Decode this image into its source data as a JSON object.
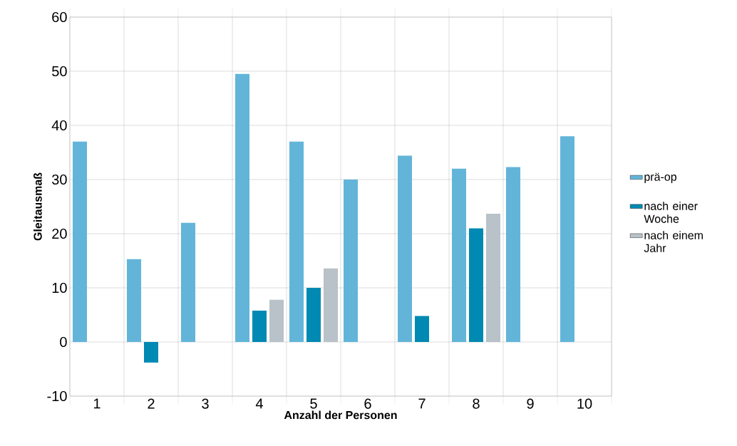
{
  "chart_data": {
    "type": "bar",
    "xlabel": "Anzahl der Personen",
    "ylabel": "Gleitausmaß",
    "categories": [
      "1",
      "2",
      "3",
      "4",
      "5",
      "6",
      "7",
      "8",
      "9",
      "10"
    ],
    "series": [
      {
        "name": "prä-op",
        "color": "#62b5d9",
        "values": [
          37,
          15.3,
          22,
          49.5,
          37,
          30,
          34.4,
          32,
          32.3,
          38
        ]
      },
      {
        "name": "nach einer Woche",
        "color": "#0089b3",
        "values": [
          null,
          -3.8,
          null,
          5.8,
          10,
          null,
          4.8,
          21,
          null,
          null
        ]
      },
      {
        "name": "nach einem Jahr",
        "color": "#b8c2c8",
        "values": [
          null,
          null,
          null,
          7.8,
          13.6,
          null,
          null,
          23.7,
          null,
          null
        ]
      }
    ],
    "ylim": [
      -10,
      60
    ],
    "yticks": [
      -10,
      0,
      10,
      20,
      30,
      40,
      50,
      60
    ],
    "grid": true,
    "legend": "right"
  }
}
